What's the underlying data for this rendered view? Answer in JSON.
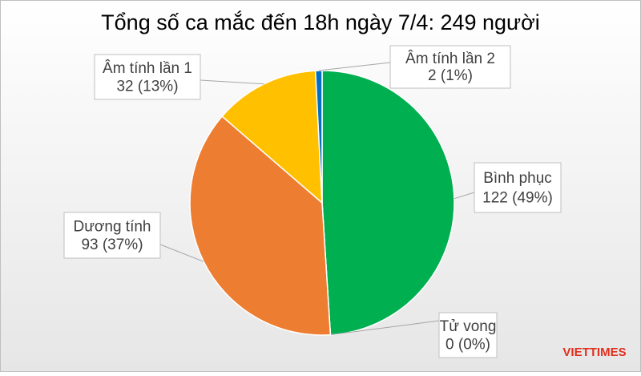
{
  "chart_data": {
    "type": "pie",
    "title": "Tổng số ca mắc đến 18h ngày 7/4: 249 người",
    "categories": [
      "Bình phục",
      "Tử vong",
      "Dương tính",
      "Âm tính lần 1",
      "Âm tính lần 2"
    ],
    "values": [
      122,
      0,
      93,
      32,
      2
    ],
    "value_labels": [
      "122 (49%)",
      "0 (0%)",
      "93 (37%)",
      "32 (13%)",
      "2 (1%)"
    ],
    "colors": [
      "#00b050",
      "#7f7f7f",
      "#ed7d31",
      "#ffc000",
      "#0070c0"
    ]
  },
  "watermark": "VIETTIMES"
}
